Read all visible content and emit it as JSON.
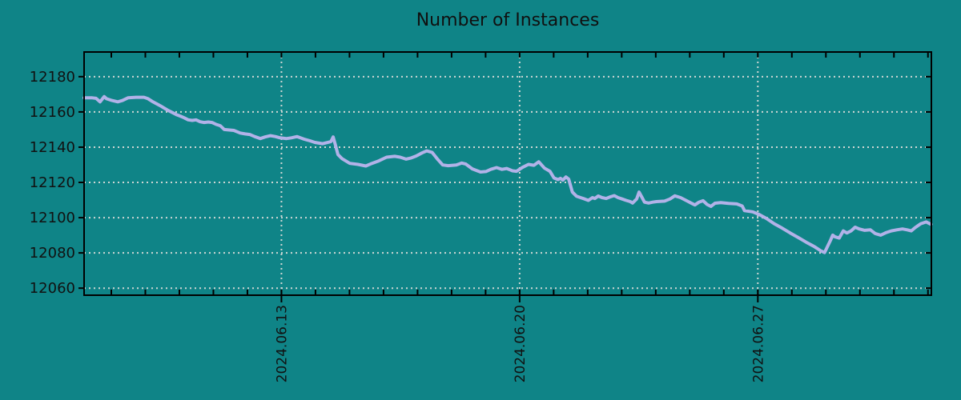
{
  "title": "Number of Instances",
  "colors": {
    "background": "#0F8487",
    "line": "#B2B2E8",
    "grid": "#CDD6D3",
    "axis": "#000000",
    "text": "#111111"
  },
  "chart_data": {
    "type": "line",
    "title": "Number of Instances",
    "xlabel": "",
    "ylabel": "",
    "legend": "none",
    "grid": "dotted",
    "x_unit": "days since 2024-06-07 00:00",
    "xlim": [
      0.2,
      25.1
    ],
    "ylim": [
      12056,
      12194
    ],
    "y_ticks": [
      12060,
      12080,
      12100,
      12120,
      12140,
      12160,
      12180
    ],
    "x_ticks_major": [
      {
        "x": 6,
        "label": "2024.06.13"
      },
      {
        "x": 13,
        "label": "2024.06.20"
      },
      {
        "x": 20,
        "label": "2024.06.27"
      }
    ],
    "x_minor_tick_step": 1,
    "series": [
      {
        "name": "Number of Instances",
        "x": [
          0.2,
          0.44,
          0.55,
          0.67,
          0.79,
          0.86,
          1.02,
          1.19,
          1.33,
          1.49,
          1.73,
          1.96,
          2.08,
          2.2,
          2.44,
          2.67,
          2.79,
          2.91,
          3.02,
          3.14,
          3.26,
          3.38,
          3.49,
          3.61,
          3.73,
          3.85,
          3.96,
          4.08,
          4.2,
          4.32,
          4.44,
          4.6,
          4.79,
          4.93,
          5.07,
          5.21,
          5.38,
          5.52,
          5.68,
          5.82,
          5.96,
          6.15,
          6.29,
          6.46,
          6.67,
          6.84,
          6.98,
          7.21,
          7.45,
          7.52,
          7.59,
          7.66,
          7.78,
          8.01,
          8.25,
          8.48,
          8.62,
          8.86,
          9.09,
          9.33,
          9.49,
          9.66,
          9.8,
          9.96,
          10.13,
          10.27,
          10.43,
          10.6,
          10.74,
          10.9,
          11.14,
          11.3,
          11.42,
          11.61,
          11.85,
          12.01,
          12.15,
          12.32,
          12.48,
          12.62,
          12.79,
          12.91,
          13.09,
          13.26,
          13.42,
          13.56,
          13.73,
          13.89,
          14.01,
          14.13,
          14.2,
          14.27,
          14.36,
          14.44,
          14.55,
          14.67,
          14.79,
          14.91,
          15.02,
          15.14,
          15.21,
          15.31,
          15.42,
          15.54,
          15.66,
          15.78,
          15.89,
          16.01,
          16.13,
          16.25,
          16.32,
          16.44,
          16.51,
          16.6,
          16.67,
          16.79,
          16.91,
          17.02,
          17.26,
          17.42,
          17.56,
          17.73,
          17.89,
          18.04,
          18.15,
          18.27,
          18.39,
          18.51,
          18.62,
          18.74,
          18.91,
          19.14,
          19.38,
          19.54,
          19.61,
          19.85,
          20.04,
          20.25,
          20.48,
          20.72,
          20.95,
          21.19,
          21.42,
          21.66,
          21.85,
          21.96,
          22.13,
          22.2,
          22.27,
          22.39,
          22.51,
          22.62,
          22.74,
          22.86,
          22.98,
          23.14,
          23.31,
          23.45,
          23.61,
          23.78,
          23.92,
          24.08,
          24.25,
          24.39,
          24.51,
          24.62,
          24.79,
          24.95,
          25.09
        ],
        "y": [
          12168,
          12168,
          12167.7,
          12165.7,
          12168.7,
          12167.5,
          12166.5,
          12165.7,
          12166.5,
          12168,
          12168.3,
          12168.3,
          12167.5,
          12166,
          12163.5,
          12160.8,
          12159.7,
          12158.5,
          12157.7,
          12156.7,
          12155.5,
          12155.2,
          12155.5,
          12154.4,
          12154,
          12154.3,
          12154,
          12152.9,
          12152.2,
          12150,
          12149.8,
          12149.5,
          12148,
          12147.5,
          12147.2,
          12146,
          12144.9,
          12145.8,
          12146.5,
          12146,
          12145.3,
          12144.9,
          12145.3,
          12146,
          12144.5,
          12143.6,
          12142.7,
          12142,
          12143.1,
          12145.8,
          12141,
          12135.8,
          12133.5,
          12130.8,
          12130.2,
          12129.3,
          12130.5,
          12132.2,
          12134.3,
          12134.8,
          12134.3,
          12133.2,
          12133.8,
          12135,
          12136.7,
          12137.9,
          12137,
          12132.9,
          12129.9,
          12129.5,
          12129.9,
          12131,
          12130.4,
          12127.7,
          12125.9,
          12126.2,
          12127.4,
          12128.4,
          12127.4,
          12127.9,
          12126.6,
          12126.3,
          12128.6,
          12130.2,
          12129.7,
          12131.7,
          12128.1,
          12126.3,
          12122.5,
          12121.6,
          12122.3,
          12121.3,
          12123.1,
          12121.9,
          12114.5,
          12112.2,
          12111.4,
          12110.6,
          12109.8,
          12111.4,
          12110.9,
          12112.3,
          12111.4,
          12110.9,
          12111.8,
          12112.5,
          12111.4,
          12110.6,
          12109.8,
          12109.1,
          12108.3,
          12110.6,
          12114.5,
          12111.4,
          12108.8,
          12108.3,
          12108.8,
          12109.1,
          12109.4,
          12110.6,
          12112.4,
          12111.4,
          12109.8,
          12108.3,
          12107.2,
          12108.8,
          12109.6,
          12107.5,
          12106.4,
          12108.2,
          12108.5,
          12108.1,
          12107.8,
          12106.6,
          12104,
          12103.3,
          12101.8,
          12099.6,
          12096.6,
          12094,
          12091.3,
          12088.7,
          12086.1,
          12083.6,
          12081.2,
          12080.2,
          12086.9,
          12090.1,
          12089.1,
          12088.4,
          12092.5,
          12091.3,
          12092.5,
          12094.6,
          12093.6,
          12092.8,
          12093.1,
          12091,
          12090.1,
          12091.6,
          12092.5,
          12093.1,
          12093.6,
          12093.1,
          12092.5,
          12094.3,
          12096.6,
          12097.6,
          12096.2
        ]
      }
    ]
  }
}
